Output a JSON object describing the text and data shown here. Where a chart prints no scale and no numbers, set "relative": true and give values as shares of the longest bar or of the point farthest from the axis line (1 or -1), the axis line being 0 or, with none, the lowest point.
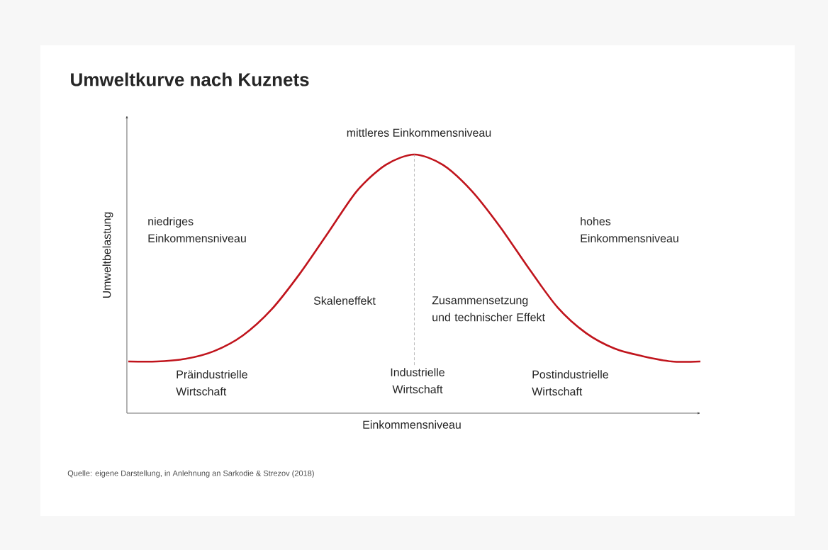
{
  "chart_data": {
    "type": "line",
    "title": "Umweltkurve nach Kuznets",
    "xlabel": "Einkommensniveau",
    "ylabel": "Umweltbelastung",
    "relative": true,
    "marker": "none",
    "line_style": "solid",
    "categories": [
      null,
      null,
      null,
      null,
      null,
      null,
      null,
      null,
      null,
      null,
      null,
      null,
      null,
      null,
      null,
      null,
      null,
      null,
      null,
      null,
      null
    ],
    "series": [
      {
        "color": "#c0141c",
        "values": [
          0.2,
          0.2,
          0.21,
          0.24,
          0.3,
          0.4,
          0.54,
          0.7,
          0.86,
          0.96,
          1.0,
          0.96,
          0.86,
          0.72,
          0.56,
          0.41,
          0.31,
          0.25,
          0.22,
          0.2,
          0.2
        ]
      }
    ],
    "annotations": [
      "mittleres Einkommensniveau",
      "niedriges Einkommensniveau",
      "hohes Einkommensniveau",
      "Skaleneffekt",
      "Zusammensetzung und technischer Effekt",
      "Präindustrielle Wirtschaft",
      "Industrielle Wirtschaft",
      "Postindustrielle Wirtschaft",
      "Quelle: eigene Darstellung, in Anlehnung an Sarkodie & Strezov (2018)"
    ]
  }
}
